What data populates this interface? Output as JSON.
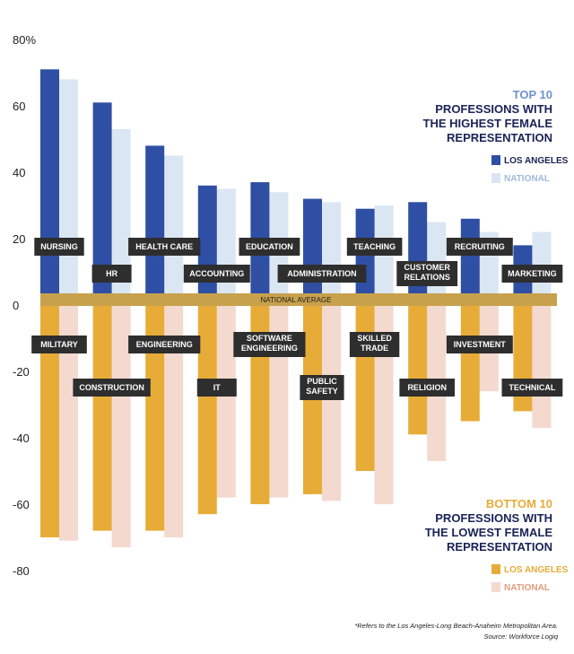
{
  "chart_data": {
    "type": "bar",
    "ylim": [
      -80,
      80
    ],
    "yticks": [
      80,
      60,
      40,
      20,
      0,
      -20,
      -40,
      -60,
      -80
    ],
    "ytick_labels": [
      "80%",
      "60",
      "40",
      "20",
      "0",
      "-20",
      "-40",
      "-60",
      "-80"
    ],
    "baseline_label": "NATIONAL AVERAGE",
    "top": {
      "title_lines": [
        "TOP 10",
        "PROFESSIONS WITH",
        "THE HIGHEST FEMALE",
        "REPRESENTATION"
      ],
      "categories": [
        [
          "NURSING"
        ],
        [
          "HR"
        ],
        [
          "HEALTH CARE"
        ],
        [
          "ACCOUNTING"
        ],
        [
          "EDUCATION"
        ],
        [
          "ADMINISTRATION"
        ],
        [
          "TEACHING"
        ],
        [
          "CUSTOMER",
          "RELATIONS"
        ],
        [
          "RECRUITING"
        ],
        [
          "MARKETING"
        ]
      ],
      "series": [
        {
          "name": "LOS ANGELES",
          "values": [
            71,
            61,
            48,
            36,
            37,
            32,
            29,
            31,
            26,
            18
          ]
        },
        {
          "name": "NATIONAL",
          "values": [
            68,
            53,
            45,
            35,
            34,
            31,
            30,
            25,
            22,
            22
          ]
        }
      ]
    },
    "bottom": {
      "title_lines": [
        "BOTTOM 10",
        "PROFESSIONS WITH",
        "THE LOWEST FEMALE",
        "REPRESENTATION"
      ],
      "categories": [
        [
          "MILITARY"
        ],
        [
          "CONSTRUCTION"
        ],
        [
          "ENGINEERING"
        ],
        [
          "IT"
        ],
        [
          "SOFTWARE",
          "ENGINEERING"
        ],
        [
          "PUBLIC",
          "SAFETY"
        ],
        [
          "SKILLED",
          "TRADE"
        ],
        [
          "RELIGION"
        ],
        [
          "INVESTMENT"
        ],
        [
          "TECHNICAL"
        ]
      ],
      "series": [
        {
          "name": "LOS ANGELES",
          "values": [
            -70,
            -68,
            -68,
            -63,
            -60,
            -57,
            -50,
            -39,
            -35,
            -32
          ]
        },
        {
          "name": "NATIONAL",
          "values": [
            -71,
            -73,
            -70,
            -58,
            -58,
            -59,
            -60,
            -47,
            -26,
            -37
          ]
        }
      ]
    },
    "footnote": "*Refers to the Los Angeles-Long Beach-Anaheim Metropolitan Area.",
    "source": "Source: Workforce Logiq"
  },
  "colors": {
    "la_top": "#2e4fa3",
    "nat_top": "#dbe6f3",
    "la_bottom": "#e7ac38",
    "nat_bottom": "#f4d9cf",
    "label_box": "#2e2e2e",
    "baseline": "#c7a14c",
    "title_accent_top": "#6f93cf",
    "title_accent_bottom": "#e7ac38",
    "title_dark": "#1a2356",
    "legend_nat_top_text": "#9fb9dc",
    "legend_nat_bottom_text": "#e39a7f"
  }
}
